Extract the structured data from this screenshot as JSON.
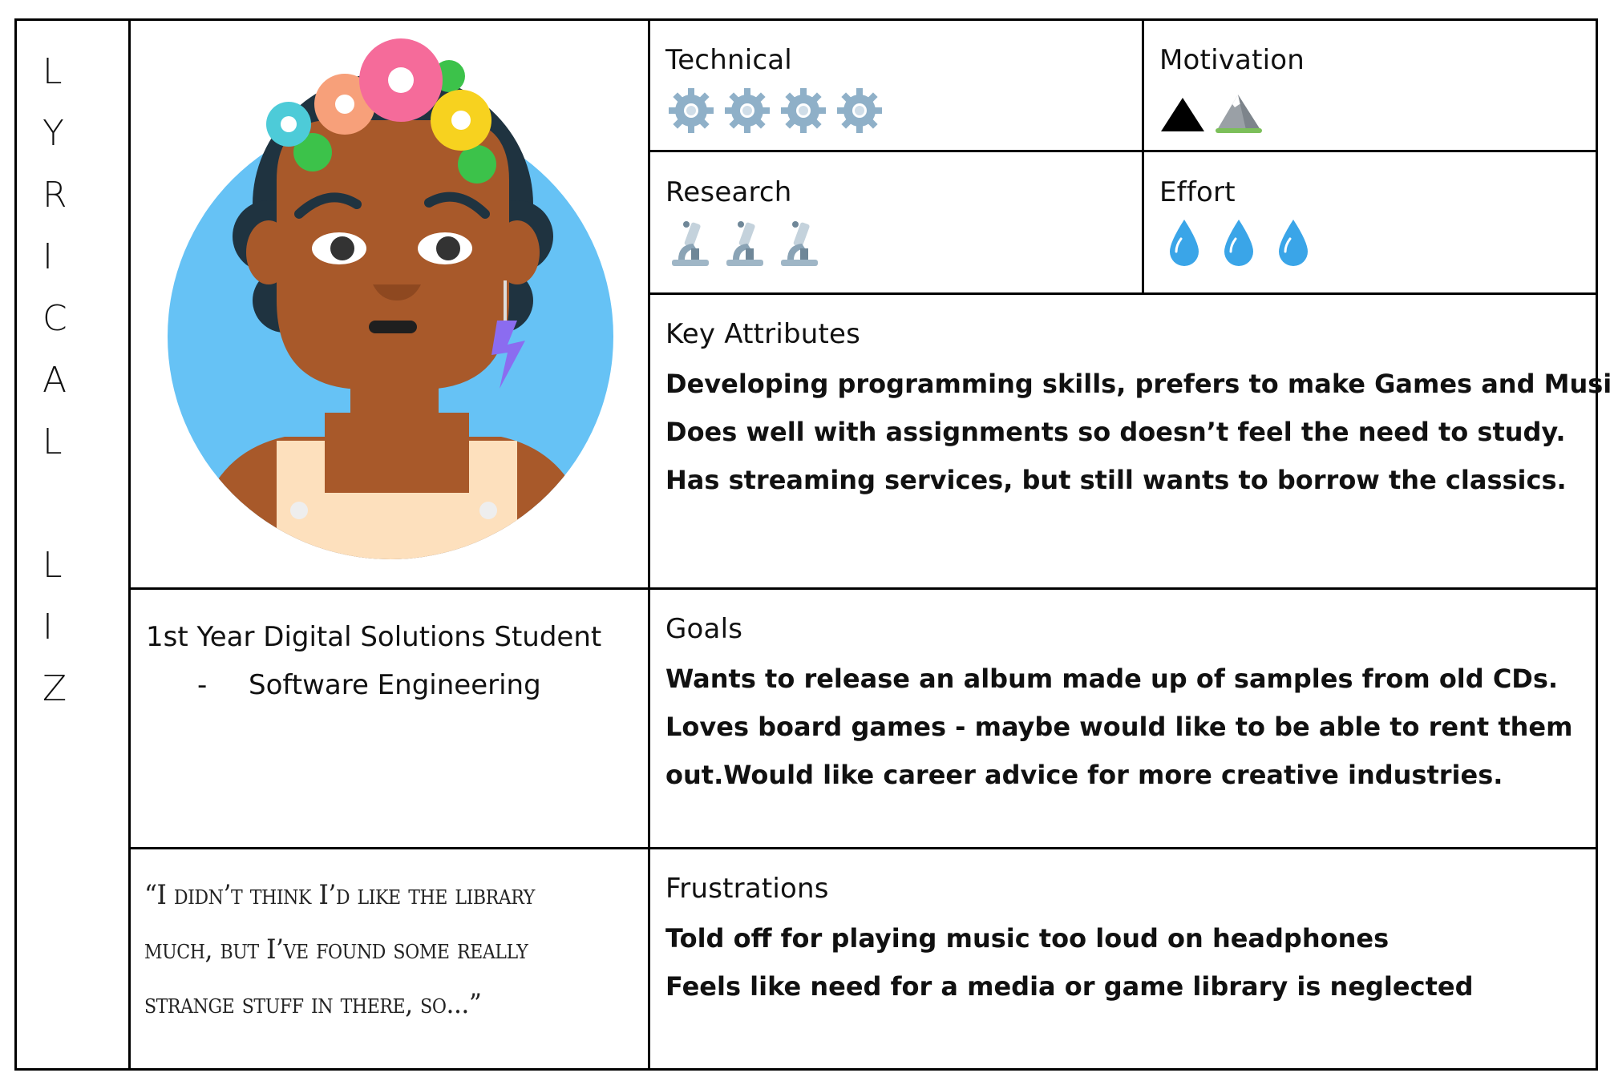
{
  "persona": {
    "name_letters": [
      "L",
      "Y",
      "R",
      "I",
      "C",
      "A",
      "L",
      "",
      "L",
      "I",
      "Z"
    ],
    "role": "1st Year Digital Solutions Student",
    "role_detail_dash": "-",
    "role_detail": "Software Engineering",
    "quote_lines": [
      "“I didn’t think I’d like the library",
      "much, but I’ve found some really",
      "strange stuff in there, so...”"
    ]
  },
  "ratings": {
    "technical": {
      "label": "Technical",
      "level": 4,
      "icon": "gear-icon"
    },
    "motivation": {
      "label": "Motivation",
      "level": 2,
      "icons": [
        "triangle-icon",
        "mountain-icon"
      ]
    },
    "research": {
      "label": "Research",
      "level": 3,
      "icon": "microscope-icon"
    },
    "effort": {
      "label": "Effort",
      "level": 3,
      "icon": "droplet-icon"
    }
  },
  "key_attributes": {
    "label": "Key Attributes",
    "lines": [
      "Developing programming skills, prefers to make Games and Music.",
      "Does well with assignments so doesn’t feel the need to study.",
      "Has streaming services, but still wants to borrow the classics."
    ]
  },
  "goals": {
    "label": "Goals",
    "lines": [
      "Wants to release an album made up of samples from old CDs.",
      "Loves board games - maybe would like to be able to rent them",
      "out.Would like career advice for more creative industries."
    ]
  },
  "frustrations": {
    "label": "Frustrations",
    "lines": [
      "Told off for playing music too loud on headphones",
      "Feels like need for a media or game library is neglected"
    ]
  },
  "colors": {
    "avatar_bg": "#66c2f5",
    "hair": "#1f3340",
    "skin": "#a8592a",
    "gear": "#8fb0c8",
    "drop": "#3aa5e8"
  }
}
